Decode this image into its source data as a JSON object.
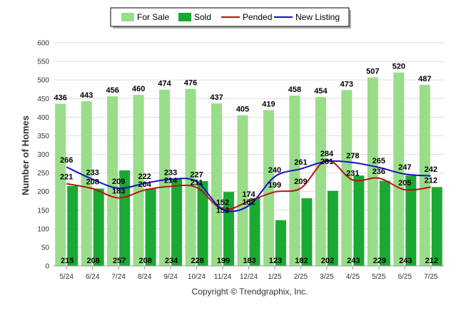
{
  "chart_data": {
    "type": "bar",
    "categories": [
      "5/24",
      "6/24",
      "7/24",
      "8/24",
      "9/24",
      "10/24",
      "11/24",
      "12/24",
      "1/25",
      "2/25",
      "3/25",
      "4/25",
      "5/25",
      "6/25",
      "7/25"
    ],
    "series": [
      {
        "name": "For Sale",
        "kind": "bar",
        "color": "#99dd88",
        "values": [
          436,
          443,
          456,
          460,
          474,
          476,
          437,
          405,
          419,
          458,
          454,
          473,
          507,
          520,
          487
        ]
      },
      {
        "name": "Sold",
        "kind": "bar",
        "color": "#1aaa33",
        "values": [
          215,
          208,
          257,
          208,
          234,
          228,
          199,
          183,
          123,
          182,
          202,
          243,
          229,
          243,
          212
        ]
      },
      {
        "name": "Pended",
        "kind": "line",
        "color": "#bb1111",
        "values": [
          221,
          208,
          183,
          204,
          214,
          211,
          152,
          174,
          199,
          209,
          284,
          231,
          236,
          205,
          212
        ]
      },
      {
        "name": "New Listing",
        "kind": "line",
        "color": "#1111cc",
        "values": [
          266,
          233,
          209,
          222,
          233,
          227,
          152,
          162,
          240,
          261,
          281,
          278,
          265,
          247,
          242
        ]
      }
    ],
    "ylabel": "Number of Homes",
    "xlabel": "",
    "ylim": [
      0,
      600
    ],
    "yticks": [
      0,
      50,
      100,
      150,
      200,
      250,
      300,
      350,
      400,
      450,
      500,
      550,
      600
    ],
    "grid": true,
    "legend": "top-center"
  },
  "footer": {
    "copyright": "Copyright © Trendgraphix, Inc."
  }
}
